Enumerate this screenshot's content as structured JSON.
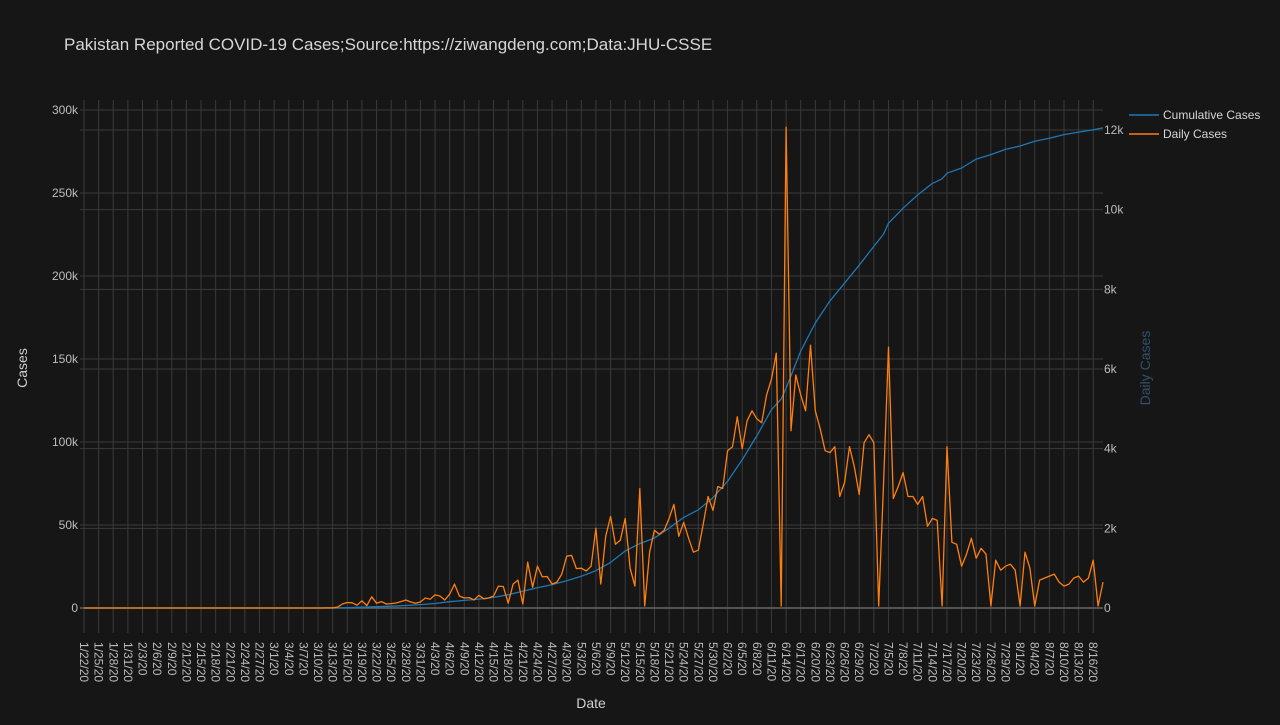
{
  "colors": {
    "background": "#161616",
    "grid": "#3a3a3a",
    "text": "#cfcfcf",
    "cumulative": "#1f77b4",
    "daily": "#ff7f0e",
    "right_axis_title": "#32506d"
  },
  "chart_data": {
    "type": "line",
    "title": "Pakistan Reported COVID-19 Cases;Source:https://ziwangdeng.com;Data:JHU-CSSE",
    "xlabel": "Date",
    "ylabel": "Cases",
    "y2label": "Daily Cases",
    "xlim": [
      "1/22/20",
      "8/18/20"
    ],
    "ylim": [
      0,
      300000
    ],
    "y2lim": [
      0,
      12500
    ],
    "grid": true,
    "legend_position": "top-right",
    "x_tick_labels": [
      "1/22/20",
      "1/25/20",
      "1/28/20",
      "1/31/20",
      "2/3/20",
      "2/6/20",
      "2/9/20",
      "2/12/20",
      "2/15/20",
      "2/18/20",
      "2/21/20",
      "2/24/20",
      "2/27/20",
      "3/1/20",
      "3/4/20",
      "3/7/20",
      "3/10/20",
      "3/13/20",
      "3/16/20",
      "3/19/20",
      "3/22/20",
      "3/25/20",
      "3/28/20",
      "3/31/20",
      "4/3/20",
      "4/6/20",
      "4/9/20",
      "4/12/20",
      "4/15/20",
      "4/18/20",
      "4/21/20",
      "4/24/20",
      "4/27/20",
      "4/30/20",
      "5/3/20",
      "5/6/20",
      "5/9/20",
      "5/12/20",
      "5/15/20",
      "5/18/20",
      "5/21/20",
      "5/24/20",
      "5/27/20",
      "5/30/20",
      "6/2/20",
      "6/5/20",
      "6/8/20",
      "6/11/20",
      "6/14/20",
      "6/17/20",
      "6/20/20",
      "6/23/20",
      "6/26/20",
      "6/29/20",
      "7/2/20",
      "7/5/20",
      "7/8/20",
      "7/11/20",
      "7/14/20",
      "7/17/20",
      "7/20/20",
      "7/23/20",
      "7/26/20",
      "7/29/20",
      "8/1/20",
      "8/4/20",
      "8/7/20",
      "8/10/20",
      "8/13/20",
      "8/16/20"
    ],
    "y_tick_labels": [
      "0",
      "50k",
      "100k",
      "150k",
      "200k",
      "250k",
      "300k"
    ],
    "y_tick_values": [
      0,
      50000,
      100000,
      150000,
      200000,
      250000,
      300000
    ],
    "y2_tick_labels": [
      "0",
      "2k",
      "4k",
      "6k",
      "8k",
      "10k",
      "12k"
    ],
    "y2_tick_values": [
      0,
      2000,
      4000,
      6000,
      8000,
      10000,
      12000
    ],
    "series": [
      {
        "name": "Cumulative Cases",
        "axis": "left",
        "points": [
          [
            "1/22/20",
            0
          ],
          [
            "2/26/20",
            2
          ],
          [
            "3/10/20",
            19
          ],
          [
            "3/13/20",
            28
          ],
          [
            "3/16/20",
            187
          ],
          [
            "3/19/20",
            454
          ],
          [
            "3/22/20",
            776
          ],
          [
            "3/25/20",
            1057
          ],
          [
            "3/28/20",
            1495
          ],
          [
            "3/31/20",
            2039
          ],
          [
            "4/3/20",
            2686
          ],
          [
            "4/6/20",
            3766
          ],
          [
            "4/9/20",
            4601
          ],
          [
            "4/12/20",
            5374
          ],
          [
            "4/15/20",
            6383
          ],
          [
            "4/18/20",
            7993
          ],
          [
            "4/21/20",
            10076
          ],
          [
            "4/24/20",
            12227
          ],
          [
            "4/27/20",
            14079
          ],
          [
            "4/30/20",
            16473
          ],
          [
            "5/3/20",
            19103
          ],
          [
            "5/6/20",
            22550
          ],
          [
            "5/9/20",
            27474
          ],
          [
            "5/12/20",
            34336
          ],
          [
            "5/15/20",
            38799
          ],
          [
            "5/18/20",
            42125
          ],
          [
            "5/21/20",
            48091
          ],
          [
            "5/24/20",
            54601
          ],
          [
            "5/27/20",
            59151
          ],
          [
            "5/30/20",
            66457
          ],
          [
            "6/2/20",
            76398
          ],
          [
            "6/5/20",
            89249
          ],
          [
            "6/8/20",
            103671
          ],
          [
            "6/11/20",
            119536
          ],
          [
            "6/13/20",
            125933
          ],
          [
            "6/14/20",
            132405
          ],
          [
            "6/17/20",
            154760
          ],
          [
            "6/20/20",
            171666
          ],
          [
            "6/23/20",
            185034
          ],
          [
            "6/26/20",
            195745
          ],
          [
            "6/29/20",
            206512
          ],
          [
            "7/2/20",
            217809
          ],
          [
            "7/4/20",
            225283
          ],
          [
            "7/5/20",
            231818
          ],
          [
            "7/8/20",
            240848
          ],
          [
            "7/11/20",
            248872
          ],
          [
            "7/14/20",
            255769
          ],
          [
            "7/16/20",
            258575
          ],
          [
            "7/17/20",
            261917
          ],
          [
            "7/20/20",
            265083
          ],
          [
            "7/23/20",
            270400
          ],
          [
            "7/26/20",
            273113
          ],
          [
            "7/29/20",
            276288
          ],
          [
            "8/1/20",
            278305
          ],
          [
            "8/4/20",
            281136
          ],
          [
            "8/7/20",
            282935
          ],
          [
            "8/10/20",
            285191
          ],
          [
            "8/13/20",
            286674
          ],
          [
            "8/16/20",
            288047
          ],
          [
            "8/18/20",
            289215
          ]
        ]
      },
      {
        "name": "Daily Cases",
        "axis": "right",
        "points": [
          [
            "1/22/20",
            0
          ],
          [
            "3/10/20",
            0
          ],
          [
            "3/13/20",
            5
          ],
          [
            "3/14/20",
            20
          ],
          [
            "3/15/20",
            100
          ],
          [
            "3/16/20",
            137
          ],
          [
            "3/17/20",
            130
          ],
          [
            "3/18/20",
            70
          ],
          [
            "3/19/20",
            180
          ],
          [
            "3/20/20",
            60
          ],
          [
            "3/21/20",
            280
          ],
          [
            "3/22/20",
            120
          ],
          [
            "3/23/20",
            160
          ],
          [
            "3/24/20",
            100
          ],
          [
            "3/25/20",
            110
          ],
          [
            "3/26/20",
            125
          ],
          [
            "3/27/20",
            160
          ],
          [
            "3/28/20",
            200
          ],
          [
            "3/29/20",
            150
          ],
          [
            "3/30/20",
            120
          ],
          [
            "3/31/20",
            150
          ],
          [
            "4/1/20",
            250
          ],
          [
            "4/2/20",
            220
          ],
          [
            "4/3/20",
            330
          ],
          [
            "4/4/20",
            300
          ],
          [
            "4/5/20",
            200
          ],
          [
            "4/6/20",
            350
          ],
          [
            "4/7/20",
            600
          ],
          [
            "4/8/20",
            300
          ],
          [
            "4/9/20",
            250
          ],
          [
            "4/10/20",
            260
          ],
          [
            "4/11/20",
            200
          ],
          [
            "4/12/20",
            320
          ],
          [
            "4/13/20",
            230
          ],
          [
            "4/14/20",
            250
          ],
          [
            "4/15/20",
            300
          ],
          [
            "4/16/20",
            550
          ],
          [
            "4/17/20",
            540
          ],
          [
            "4/18/20",
            120
          ],
          [
            "4/19/20",
            600
          ],
          [
            "4/20/20",
            700
          ],
          [
            "4/21/20",
            100
          ],
          [
            "4/22/20",
            1150
          ],
          [
            "4/23/20",
            520
          ],
          [
            "4/24/20",
            1050
          ],
          [
            "4/25/20",
            780
          ],
          [
            "4/26/20",
            790
          ],
          [
            "4/27/20",
            600
          ],
          [
            "4/28/20",
            650
          ],
          [
            "4/29/20",
            850
          ],
          [
            "4/30/20",
            1300
          ],
          [
            "5/1/20",
            1320
          ],
          [
            "5/2/20",
            990
          ],
          [
            "5/3/20",
            1000
          ],
          [
            "5/4/20",
            930
          ],
          [
            "5/5/20",
            1050
          ],
          [
            "5/6/20",
            2000
          ],
          [
            "5/7/20",
            600
          ],
          [
            "5/8/20",
            1800
          ],
          [
            "5/9/20",
            2300
          ],
          [
            "5/10/20",
            1600
          ],
          [
            "5/11/20",
            1700
          ],
          [
            "5/12/20",
            2250
          ],
          [
            "5/13/20",
            1000
          ],
          [
            "5/14/20",
            550
          ],
          [
            "5/15/20",
            3000
          ],
          [
            "5/16/20",
            50
          ],
          [
            "5/17/20",
            1400
          ],
          [
            "5/18/20",
            1950
          ],
          [
            "5/19/20",
            1850
          ],
          [
            "5/20/20",
            1950
          ],
          [
            "5/21/20",
            2250
          ],
          [
            "5/22/20",
            2600
          ],
          [
            "5/23/20",
            1800
          ],
          [
            "5/24/20",
            2150
          ],
          [
            "5/25/20",
            1750
          ],
          [
            "5/26/20",
            1400
          ],
          [
            "5/27/20",
            1450
          ],
          [
            "5/28/20",
            2100
          ],
          [
            "5/29/20",
            2800
          ],
          [
            "5/30/20",
            2450
          ],
          [
            "5/31/20",
            3050
          ],
          [
            "6/1/20",
            3000
          ],
          [
            "6/2/20",
            3950
          ],
          [
            "6/3/20",
            4050
          ],
          [
            "6/4/20",
            4800
          ],
          [
            "6/5/20",
            4000
          ],
          [
            "6/6/20",
            4700
          ],
          [
            "6/7/20",
            4950
          ],
          [
            "6/8/20",
            4750
          ],
          [
            "6/9/20",
            4650
          ],
          [
            "6/10/20",
            5350
          ],
          [
            "6/11/20",
            5750
          ],
          [
            "6/12/20",
            6400
          ],
          [
            "6/13/20",
            50
          ],
          [
            "6/14/20",
            12070
          ],
          [
            "6/15/20",
            4450
          ],
          [
            "6/16/20",
            5850
          ],
          [
            "6/17/20",
            5350
          ],
          [
            "6/18/20",
            4950
          ],
          [
            "6/19/20",
            6600
          ],
          [
            "6/20/20",
            4950
          ],
          [
            "6/21/20",
            4500
          ],
          [
            "6/22/20",
            3950
          ],
          [
            "6/23/20",
            3900
          ],
          [
            "6/24/20",
            4050
          ],
          [
            "6/25/20",
            2800
          ],
          [
            "6/26/20",
            3150
          ],
          [
            "6/27/20",
            4050
          ],
          [
            "6/28/20",
            3550
          ],
          [
            "6/29/20",
            2850
          ],
          [
            "6/30/20",
            4150
          ],
          [
            "7/1/20",
            4350
          ],
          [
            "7/2/20",
            4150
          ],
          [
            "7/3/20",
            50
          ],
          [
            "7/4/20",
            3150
          ],
          [
            "7/5/20",
            6550
          ],
          [
            "7/6/20",
            2750
          ],
          [
            "7/7/20",
            3050
          ],
          [
            "7/8/20",
            3400
          ],
          [
            "7/9/20",
            2800
          ],
          [
            "7/10/20",
            2800
          ],
          [
            "7/11/20",
            2600
          ],
          [
            "7/12/20",
            2800
          ],
          [
            "7/13/20",
            2050
          ],
          [
            "7/14/20",
            2250
          ],
          [
            "7/15/20",
            2200
          ],
          [
            "7/16/20",
            50
          ],
          [
            "7/17/20",
            4050
          ],
          [
            "7/18/20",
            1650
          ],
          [
            "7/19/20",
            1600
          ],
          [
            "7/20/20",
            1050
          ],
          [
            "7/21/20",
            1350
          ],
          [
            "7/22/20",
            1750
          ],
          [
            "7/23/20",
            1250
          ],
          [
            "7/24/20",
            1500
          ],
          [
            "7/25/20",
            1350
          ],
          [
            "7/26/20",
            50
          ],
          [
            "7/27/20",
            1200
          ],
          [
            "7/28/20",
            950
          ],
          [
            "7/29/20",
            1050
          ],
          [
            "7/30/20",
            1100
          ],
          [
            "7/31/20",
            950
          ],
          [
            "8/1/20",
            50
          ],
          [
            "8/2/20",
            1400
          ],
          [
            "8/3/20",
            1000
          ],
          [
            "8/4/20",
            50
          ],
          [
            "8/5/20",
            700
          ],
          [
            "8/6/20",
            750
          ],
          [
            "8/7/20",
            800
          ],
          [
            "8/8/20",
            850
          ],
          [
            "8/9/20",
            650
          ],
          [
            "8/10/20",
            550
          ],
          [
            "8/11/20",
            600
          ],
          [
            "8/12/20",
            750
          ],
          [
            "8/13/20",
            800
          ],
          [
            "8/14/20",
            650
          ],
          [
            "8/15/20",
            750
          ],
          [
            "8/16/20",
            1200
          ],
          [
            "8/17/20",
            50
          ],
          [
            "8/18/20",
            650
          ]
        ]
      }
    ]
  }
}
